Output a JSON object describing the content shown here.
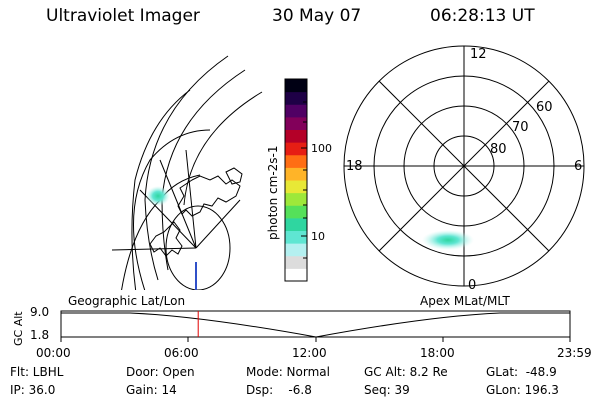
{
  "header": {
    "instrument": "Ultraviolet Imager",
    "date": "30 May 07",
    "time": "06:28:13 UT"
  },
  "colorbar": {
    "unit_label": "photon cm-2s-1",
    "ticks": [
      "100",
      "10"
    ],
    "colors": [
      "#ffffff",
      "#dcdcdc",
      "#b4f0f0",
      "#5fe6d2",
      "#2fd6a0",
      "#55e05a",
      "#9ee83a",
      "#e8e836",
      "#ffb428",
      "#ff6e14",
      "#e61e14",
      "#b40028",
      "#82005a",
      "#500064",
      "#1e0046",
      "#000014"
    ]
  },
  "polar_plot": {
    "mlt_labels": {
      "top": "12",
      "left": "18",
      "right": "6",
      "bottom": "0"
    },
    "lat_labels": [
      "60",
      "70",
      "80"
    ]
  },
  "timeline": {
    "ylabel": "GC Alt",
    "yticks": [
      "9.0",
      "1.8"
    ],
    "left_caption": "Geographic Lat/Lon",
    "right_caption": "Apex MLat/MLT",
    "xticks": [
      "00:00",
      "06:00",
      "12:00",
      "18:00",
      "23:59"
    ],
    "current_time_fraction": 0.2695,
    "marker_color": "#e00000"
  },
  "info": {
    "filter": "Flt: LBHL",
    "ip": "IP: 36.0",
    "door": "Door: Open",
    "gain": "Gain: 14",
    "mode": "Mode: Normal",
    "dsp": "Dsp:    -6.8",
    "gc_alt": "GC Alt: 8.2 Re",
    "seq": "Seq: 39",
    "glat": "GLat:  -48.9",
    "glon": "GLon: 196.3"
  }
}
